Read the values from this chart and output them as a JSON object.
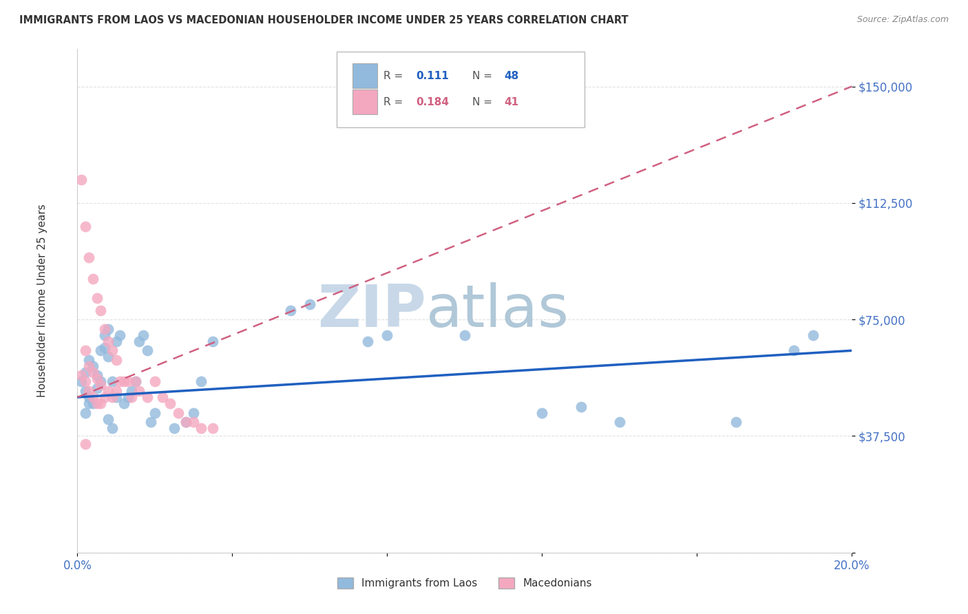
{
  "title": "IMMIGRANTS FROM LAOS VS MACEDONIAN HOUSEHOLDER INCOME UNDER 25 YEARS CORRELATION CHART",
  "source": "Source: ZipAtlas.com",
  "ylabel": "Householder Income Under 25 years",
  "xlim": [
    0.0,
    0.2
  ],
  "ylim": [
    0,
    162000
  ],
  "yticks": [
    0,
    37500,
    75000,
    112500,
    150000
  ],
  "ytick_labels": [
    "",
    "$37,500",
    "$75,000",
    "$112,500",
    "$150,000"
  ],
  "xticks": [
    0.0,
    0.04,
    0.08,
    0.12,
    0.16,
    0.2
  ],
  "xtick_labels": [
    "0.0%",
    "",
    "",
    "",
    "",
    "20.0%"
  ],
  "blue_R": 0.111,
  "blue_N": 48,
  "pink_R": 0.184,
  "pink_N": 41,
  "blue_color": "#92BADD",
  "pink_color": "#F4A8C0",
  "blue_line_color": "#2060C0",
  "pink_line_color": "#D06080",
  "watermark": "ZIPatlas",
  "watermark_color": "#D8E8F4",
  "title_color": "#333333",
  "tick_label_color": "#4472C4",
  "background_color": "#FFFFFF",
  "grid_color": "#DDDDDD",
  "blue_x": [
    0.001,
    0.002,
    0.002,
    0.003,
    0.003,
    0.004,
    0.004,
    0.005,
    0.005,
    0.006,
    0.006,
    0.007,
    0.007,
    0.008,
    0.008,
    0.009,
    0.01,
    0.01,
    0.011,
    0.012,
    0.013,
    0.014,
    0.015,
    0.016,
    0.017,
    0.018,
    0.019,
    0.02,
    0.025,
    0.028,
    0.03,
    0.032,
    0.035,
    0.055,
    0.06,
    0.075,
    0.08,
    0.1,
    0.12,
    0.13,
    0.14,
    0.17,
    0.185,
    0.19,
    0.002,
    0.003,
    0.008,
    0.009
  ],
  "blue_y": [
    55000,
    52000,
    58000,
    50000,
    62000,
    48000,
    60000,
    53000,
    57000,
    65000,
    55000,
    70000,
    66000,
    72000,
    63000,
    55000,
    68000,
    50000,
    70000,
    48000,
    50000,
    52000,
    55000,
    68000,
    70000,
    65000,
    42000,
    45000,
    40000,
    42000,
    45000,
    55000,
    68000,
    78000,
    80000,
    68000,
    70000,
    70000,
    45000,
    47000,
    42000,
    42000,
    65000,
    70000,
    45000,
    48000,
    43000,
    40000
  ],
  "pink_x": [
    0.001,
    0.001,
    0.002,
    0.002,
    0.002,
    0.003,
    0.003,
    0.003,
    0.004,
    0.004,
    0.004,
    0.005,
    0.005,
    0.005,
    0.006,
    0.006,
    0.006,
    0.007,
    0.007,
    0.008,
    0.008,
    0.009,
    0.009,
    0.01,
    0.01,
    0.011,
    0.012,
    0.013,
    0.014,
    0.015,
    0.016,
    0.018,
    0.02,
    0.022,
    0.024,
    0.026,
    0.028,
    0.03,
    0.032,
    0.035,
    0.002
  ],
  "pink_y": [
    57000,
    120000,
    55000,
    65000,
    105000,
    52000,
    60000,
    95000,
    50000,
    58000,
    88000,
    48000,
    56000,
    82000,
    48000,
    54000,
    78000,
    50000,
    72000,
    52000,
    68000,
    50000,
    65000,
    52000,
    62000,
    55000,
    55000,
    55000,
    50000,
    55000,
    52000,
    50000,
    55000,
    50000,
    48000,
    45000,
    42000,
    42000,
    40000,
    40000,
    35000
  ]
}
